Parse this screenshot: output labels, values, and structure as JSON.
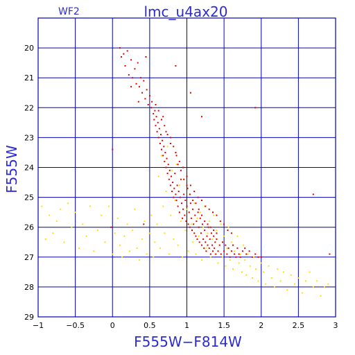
{
  "header": {
    "panel": "WF2",
    "title": "lmc_u4ax20"
  },
  "chart_data": {
    "type": "scatter",
    "title": "lmc_u4ax20",
    "xlabel": "F555W−F814W",
    "ylabel": "F555W",
    "xlim": [
      -1,
      3
    ],
    "ylim": [
      29,
      19
    ],
    "y_inverted": true,
    "grid": true,
    "x_ticks": [
      -1,
      -0.5,
      0,
      0.5,
      1,
      1.5,
      2,
      2.5,
      3
    ],
    "x_tick_labels": [
      "−1",
      "−0.5",
      "0",
      "0.5",
      "1",
      "1.5",
      "2",
      "2.5",
      "3"
    ],
    "y_ticks": [
      20,
      21,
      22,
      23,
      24,
      25,
      26,
      27,
      28,
      29
    ],
    "y_tick_labels": [
      "20",
      "21",
      "22",
      "23",
      "24",
      "25",
      "26",
      "27",
      "28",
      "29"
    ],
    "colors": {
      "grid": "#0000b4",
      "frame": "#0000b4",
      "title": "#2b2bd6",
      "series_red": "#e00000",
      "series_yellow": "#ffe000"
    },
    "series": [
      {
        "color": "#ffe000",
        "points": [
          [
            -0.95,
            25.3
          ],
          [
            -0.9,
            26.4
          ],
          [
            -0.85,
            25.6
          ],
          [
            -0.8,
            26.2
          ],
          [
            -0.75,
            25.8
          ],
          [
            -0.7,
            25.4
          ],
          [
            -0.65,
            26.5
          ],
          [
            -0.6,
            25.2
          ],
          [
            -0.55,
            26.0
          ],
          [
            -0.5,
            25.5
          ],
          [
            -0.45,
            26.7
          ],
          [
            -0.4,
            25.9
          ],
          [
            -0.35,
            26.3
          ],
          [
            -0.3,
            25.3
          ],
          [
            -0.25,
            26.8
          ],
          [
            -0.2,
            26.1
          ],
          [
            -0.15,
            25.6
          ],
          [
            -0.1,
            26.5
          ],
          [
            -0.05,
            25.3
          ],
          [
            0.0,
            26.9
          ],
          [
            0.03,
            26.2
          ],
          [
            0.07,
            25.7
          ],
          [
            0.1,
            26.6
          ],
          [
            0.13,
            27.0
          ],
          [
            0.16,
            26.3
          ],
          [
            0.2,
            25.9
          ],
          [
            0.23,
            26.8
          ],
          [
            0.27,
            26.1
          ],
          [
            0.3,
            25.4
          ],
          [
            0.33,
            26.7
          ],
          [
            0.36,
            27.1
          ],
          [
            0.4,
            26.4
          ],
          [
            0.43,
            25.8
          ],
          [
            0.46,
            26.9
          ],
          [
            0.5,
            26.2
          ],
          [
            0.52,
            25.6
          ],
          [
            0.55,
            27.0
          ],
          [
            0.57,
            26.5
          ],
          [
            0.6,
            25.9
          ],
          [
            0.62,
            24.3
          ],
          [
            0.64,
            26.7
          ],
          [
            0.66,
            23.6
          ],
          [
            0.68,
            25.3
          ],
          [
            0.7,
            26.2
          ],
          [
            0.72,
            24.8
          ],
          [
            0.74,
            23.3
          ],
          [
            0.76,
            26.9
          ],
          [
            0.78,
            25.6
          ],
          [
            0.8,
            24.1
          ],
          [
            0.82,
            26.4
          ],
          [
            0.84,
            25.1
          ],
          [
            0.86,
            23.9
          ],
          [
            0.88,
            26.6
          ],
          [
            0.9,
            24.6
          ],
          [
            0.92,
            25.8
          ],
          [
            0.94,
            27.0
          ],
          [
            0.96,
            24.4
          ],
          [
            0.98,
            26.1
          ],
          [
            1.0,
            25.4
          ],
          [
            1.02,
            26.8
          ],
          [
            1.04,
            24.9
          ],
          [
            1.06,
            25.9
          ],
          [
            1.08,
            26.5
          ],
          [
            1.1,
            25.2
          ],
          [
            1.12,
            26.9
          ],
          [
            1.14,
            25.7
          ],
          [
            1.16,
            26.3
          ],
          [
            1.18,
            25.5
          ],
          [
            1.2,
            27.1
          ],
          [
            1.22,
            26.0
          ],
          [
            1.24,
            25.3
          ],
          [
            1.26,
            26.7
          ],
          [
            1.28,
            26.2
          ],
          [
            1.3,
            25.8
          ],
          [
            1.32,
            27.0
          ],
          [
            1.34,
            26.4
          ],
          [
            1.36,
            25.6
          ],
          [
            1.38,
            26.9
          ],
          [
            1.4,
            26.1
          ],
          [
            1.42,
            27.2
          ],
          [
            1.44,
            26.6
          ],
          [
            1.46,
            25.9
          ],
          [
            1.48,
            27.0
          ],
          [
            1.5,
            26.3
          ],
          [
            1.52,
            27.3
          ],
          [
            1.54,
            26.7
          ],
          [
            1.56,
            26.0
          ],
          [
            1.58,
            27.1
          ],
          [
            1.6,
            26.5
          ],
          [
            1.62,
            27.4
          ],
          [
            1.64,
            26.8
          ],
          [
            1.66,
            27.0
          ],
          [
            1.68,
            26.3
          ],
          [
            1.7,
            27.2
          ],
          [
            1.72,
            26.9
          ],
          [
            1.74,
            27.5
          ],
          [
            1.76,
            26.6
          ],
          [
            1.78,
            27.1
          ],
          [
            1.8,
            27.6
          ],
          [
            1.82,
            26.9
          ],
          [
            1.85,
            27.3
          ],
          [
            1.88,
            27.7
          ],
          [
            1.9,
            27.0
          ],
          [
            1.93,
            27.4
          ],
          [
            1.96,
            27.8
          ],
          [
            2.0,
            27.2
          ],
          [
            2.03,
            27.5
          ],
          [
            2.06,
            27.9
          ],
          [
            2.1,
            27.3
          ],
          [
            2.14,
            27.7
          ],
          [
            2.18,
            28.0
          ],
          [
            2.22,
            27.4
          ],
          [
            2.26,
            27.8
          ],
          [
            2.3,
            27.5
          ],
          [
            2.35,
            28.1
          ],
          [
            2.4,
            27.6
          ],
          [
            2.45,
            27.9
          ],
          [
            2.5,
            27.7
          ],
          [
            2.55,
            28.2
          ],
          [
            2.6,
            27.8
          ],
          [
            2.65,
            27.5
          ],
          [
            2.7,
            28.0
          ],
          [
            2.75,
            27.8
          ],
          [
            2.8,
            28.3
          ],
          [
            2.85,
            28.0
          ],
          [
            2.9,
            27.9
          ]
        ]
      },
      {
        "color": "#e00000",
        "points": [
          [
            0.1,
            20.0
          ],
          [
            0.12,
            20.3
          ],
          [
            0.15,
            20.2
          ],
          [
            0.17,
            20.6
          ],
          [
            0.2,
            20.1
          ],
          [
            0.22,
            20.9
          ],
          [
            0.25,
            20.4
          ],
          [
            0.27,
            21.0
          ],
          [
            0.3,
            20.7
          ],
          [
            0.32,
            21.2
          ],
          [
            0.34,
            20.5
          ],
          [
            0.36,
            21.3
          ],
          [
            0.38,
            21.0
          ],
          [
            0.4,
            21.5
          ],
          [
            0.42,
            21.1
          ],
          [
            0.44,
            21.7
          ],
          [
            0.45,
            20.3
          ],
          [
            0.46,
            21.4
          ],
          [
            0.48,
            21.9
          ],
          [
            0.5,
            21.6
          ],
          [
            0.52,
            22.0
          ],
          [
            0.53,
            21.8
          ],
          [
            0.55,
            22.2
          ],
          [
            0.56,
            22.4
          ],
          [
            0.57,
            22.1
          ],
          [
            0.58,
            22.6
          ],
          [
            0.59,
            22.3
          ],
          [
            0.6,
            22.8
          ],
          [
            0.61,
            22.5
          ],
          [
            0.62,
            23.0
          ],
          [
            0.63,
            22.7
          ],
          [
            0.64,
            23.2
          ],
          [
            0.65,
            22.9
          ],
          [
            0.66,
            23.4
          ],
          [
            0.67,
            23.1
          ],
          [
            0.68,
            23.6
          ],
          [
            0.69,
            23.3
          ],
          [
            0.7,
            23.8
          ],
          [
            0.71,
            23.5
          ],
          [
            0.72,
            24.0
          ],
          [
            0.73,
            23.7
          ],
          [
            0.74,
            24.2
          ],
          [
            0.75,
            23.9
          ],
          [
            0.76,
            24.4
          ],
          [
            0.77,
            24.1
          ],
          [
            0.78,
            24.6
          ],
          [
            0.79,
            24.3
          ],
          [
            0.8,
            24.8
          ],
          [
            0.81,
            24.5
          ],
          [
            0.82,
            25.0
          ],
          [
            0.83,
            24.7
          ],
          [
            0.84,
            24.2
          ],
          [
            0.85,
            24.9
          ],
          [
            0.86,
            25.1
          ],
          [
            0.87,
            24.6
          ],
          [
            0.88,
            25.3
          ],
          [
            0.89,
            24.8
          ],
          [
            0.9,
            25.5
          ],
          [
            0.91,
            25.0
          ],
          [
            0.92,
            24.4
          ],
          [
            0.93,
            25.2
          ],
          [
            0.94,
            25.7
          ],
          [
            0.95,
            25.4
          ],
          [
            0.96,
            24.9
          ],
          [
            0.97,
            25.6
          ],
          [
            0.98,
            25.1
          ],
          [
            0.99,
            25.8
          ],
          [
            1.0,
            25.3
          ],
          [
            1.01,
            24.7
          ],
          [
            1.02,
            25.9
          ],
          [
            1.03,
            25.5
          ],
          [
            1.04,
            26.0
          ],
          [
            1.05,
            25.2
          ],
          [
            1.06,
            25.7
          ],
          [
            1.07,
            26.1
          ],
          [
            1.08,
            25.4
          ],
          [
            1.09,
            25.9
          ],
          [
            1.1,
            26.2
          ],
          [
            1.11,
            25.6
          ],
          [
            1.12,
            26.3
          ],
          [
            1.13,
            25.8
          ],
          [
            1.14,
            26.4
          ],
          [
            1.15,
            25.5
          ],
          [
            1.16,
            26.0
          ],
          [
            1.17,
            26.5
          ],
          [
            1.18,
            25.7
          ],
          [
            1.19,
            26.2
          ],
          [
            1.2,
            26.6
          ],
          [
            1.21,
            25.9
          ],
          [
            1.22,
            26.4
          ],
          [
            1.23,
            26.7
          ],
          [
            1.24,
            26.1
          ],
          [
            1.25,
            26.5
          ],
          [
            1.26,
            26.8
          ],
          [
            1.27,
            26.3
          ],
          [
            1.28,
            26.6
          ],
          [
            1.29,
            26.0
          ],
          [
            1.3,
            26.7
          ],
          [
            1.31,
            26.4
          ],
          [
            1.32,
            26.9
          ],
          [
            1.33,
            26.2
          ],
          [
            1.34,
            26.6
          ],
          [
            1.35,
            26.8
          ],
          [
            1.36,
            26.3
          ],
          [
            1.37,
            26.7
          ],
          [
            1.38,
            26.5
          ],
          [
            1.39,
            26.9
          ],
          [
            1.4,
            26.4
          ],
          [
            1.42,
            26.8
          ],
          [
            1.44,
            26.6
          ],
          [
            1.46,
            26.9
          ],
          [
            1.48,
            26.5
          ],
          [
            1.5,
            26.8
          ],
          [
            1.52,
            26.6
          ],
          [
            1.54,
            26.9
          ],
          [
            1.56,
            26.7
          ],
          [
            1.58,
            27.0
          ],
          [
            1.6,
            26.8
          ],
          [
            1.62,
            26.6
          ],
          [
            1.64,
            26.9
          ],
          [
            1.66,
            27.0
          ],
          [
            1.68,
            26.7
          ],
          [
            1.7,
            26.9
          ],
          [
            1.72,
            27.0
          ],
          [
            1.75,
            26.8
          ],
          [
            1.78,
            26.7
          ],
          [
            1.8,
            26.9
          ],
          [
            1.84,
            26.8
          ],
          [
            1.88,
            27.0
          ],
          [
            1.92,
            26.9
          ],
          [
            1.96,
            27.0
          ],
          [
            2.0,
            27.0
          ],
          [
            0.68,
            22.3
          ],
          [
            0.72,
            22.8
          ],
          [
            0.78,
            23.2
          ],
          [
            0.85,
            23.5
          ],
          [
            0.9,
            23.8
          ],
          [
            0.95,
            24.0
          ],
          [
            1.0,
            24.3
          ],
          [
            1.05,
            24.6
          ],
          [
            1.1,
            24.8
          ],
          [
            1.15,
            25.0
          ],
          [
            1.2,
            25.1
          ],
          [
            1.25,
            25.3
          ],
          [
            1.3,
            25.4
          ],
          [
            1.35,
            25.5
          ],
          [
            1.4,
            25.6
          ],
          [
            1.45,
            25.8
          ],
          [
            1.5,
            25.9
          ],
          [
            1.55,
            26.1
          ],
          [
            1.6,
            26.2
          ],
          [
            0.58,
            21.9
          ],
          [
            0.62,
            22.1
          ],
          [
            0.66,
            22.4
          ],
          [
            0.7,
            22.6
          ],
          [
            0.74,
            22.9
          ],
          [
            0.78,
            23.0
          ],
          [
            0.82,
            23.3
          ],
          [
            0.86,
            23.6
          ],
          [
            0.88,
            23.9
          ],
          [
            0.92,
            24.1
          ],
          [
            0.96,
            24.4
          ],
          [
            1.0,
            24.6
          ],
          [
            1.04,
            24.9
          ],
          [
            1.08,
            25.1
          ],
          [
            1.12,
            25.2
          ],
          [
            1.16,
            25.4
          ],
          [
            1.2,
            25.6
          ],
          [
            1.24,
            25.8
          ],
          [
            1.28,
            25.9
          ],
          [
            1.32,
            26.0
          ],
          [
            1.36,
            26.1
          ],
          [
            1.4,
            26.2
          ],
          [
            0.25,
            21.3
          ],
          [
            0.35,
            21.8
          ],
          [
            0.85,
            20.6
          ],
          [
            1.05,
            21.5
          ],
          [
            1.2,
            22.3
          ],
          [
            1.92,
            22.0
          ],
          [
            0.0,
            23.4
          ],
          [
            -0.02,
            26.0
          ],
          [
            2.7,
            24.9
          ],
          [
            2.92,
            26.9
          ],
          [
            0.42,
            25.9
          ]
        ]
      }
    ]
  }
}
